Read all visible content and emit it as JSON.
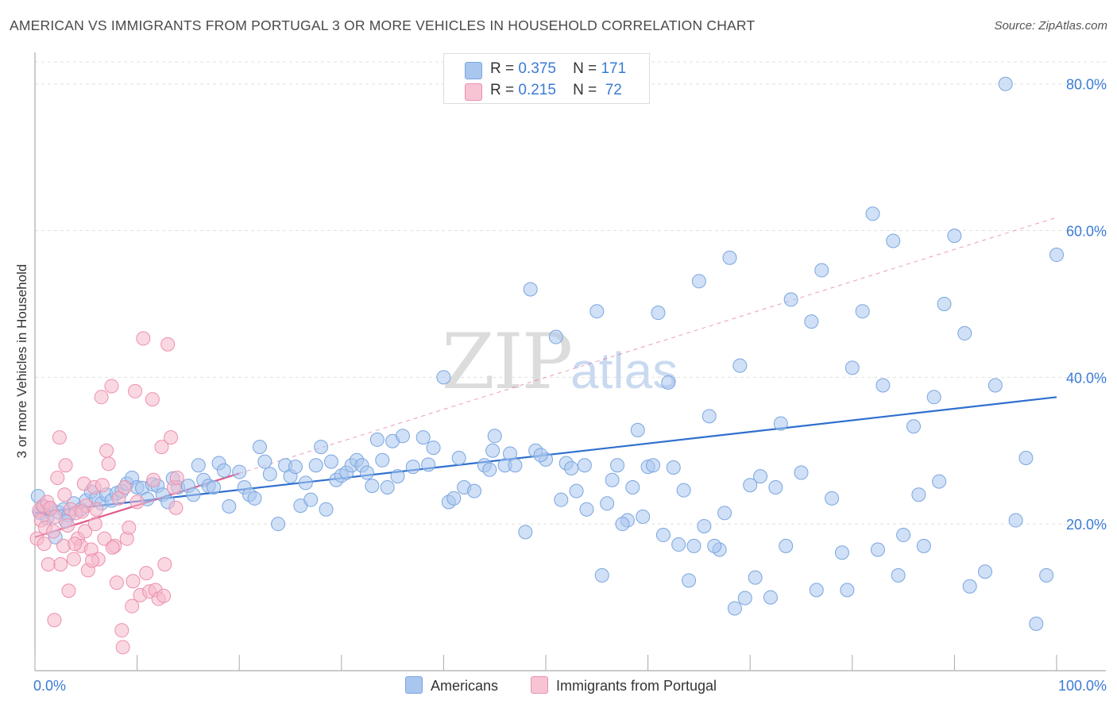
{
  "title": "AMERICAN VS IMMIGRANTS FROM PORTUGAL 3 OR MORE VEHICLES IN HOUSEHOLD CORRELATION CHART",
  "source": "Source: ZipAtlas.com",
  "watermark": {
    "zip": "ZIP",
    "atlas": "atlas"
  },
  "legend": {
    "r_label": "R =",
    "n_label": "N =",
    "rows": [
      {
        "r": "0.375",
        "n": "171"
      },
      {
        "r": "0.215",
        "n": " 72"
      }
    ]
  },
  "bottom_legend": [
    "Americans",
    "Immigrants from Portugal"
  ],
  "colors": {
    "blue_fill": "#a9c6ee",
    "blue_stroke": "#7aa6e0",
    "blue_line": "#2f6fcf",
    "pink_fill": "#f6b8cb",
    "pink_stroke": "#ec90ae",
    "pink_line": "#e05a8a",
    "axis_text": "#3a7bd5",
    "grid": "#e0e0e0"
  },
  "chart_data": {
    "type": "scatter",
    "title": "AMERICAN VS IMMIGRANTS FROM PORTUGAL 3 OR MORE VEHICLES IN HOUSEHOLD CORRELATION CHART",
    "xlabel": "",
    "ylabel": "3 or more Vehicles in Household",
    "xlim": [
      0,
      100
    ],
    "ylim": [
      0,
      83
    ],
    "x_tick_labels": [
      "0.0%",
      "100.0%"
    ],
    "y_ticks": [
      20,
      40,
      60,
      80
    ],
    "y_tick_labels": [
      "20.0%",
      "40.0%",
      "60.0%",
      "80.0%"
    ],
    "grid": true,
    "legend_position": "top-center",
    "series": [
      {
        "name": "Americans",
        "r": 0.375,
        "n": 171,
        "trend": {
          "x": [
            0,
            100
          ],
          "y": [
            21.5,
            37.3
          ]
        },
        "points": [
          [
            0.3,
            23.8
          ],
          [
            0.5,
            21.5
          ],
          [
            0.8,
            22.3
          ],
          [
            1.2,
            20.8
          ],
          [
            1.5,
            22.0
          ],
          [
            2.0,
            18.2
          ],
          [
            2.3,
            21.6
          ],
          [
            2.8,
            22.0
          ],
          [
            3.3,
            21.2
          ],
          [
            3.8,
            22.8
          ],
          [
            4.5,
            22.0
          ],
          [
            5.0,
            23.2
          ],
          [
            5.5,
            24.4
          ],
          [
            6.0,
            23.5
          ],
          [
            6.5,
            22.8
          ],
          [
            7.0,
            24.0
          ],
          [
            7.5,
            23.2
          ],
          [
            8.0,
            24.2
          ],
          [
            8.5,
            24.5
          ],
          [
            9.0,
            25.5
          ],
          [
            9.5,
            26.3
          ],
          [
            10.0,
            25.0
          ],
          [
            10.5,
            24.9
          ],
          [
            11.0,
            23.4
          ],
          [
            11.5,
            25.4
          ],
          [
            12.0,
            25.2
          ],
          [
            12.5,
            24.0
          ],
          [
            13.0,
            23.0
          ],
          [
            13.5,
            26.2
          ],
          [
            14.0,
            25.0
          ],
          [
            15.0,
            25.2
          ],
          [
            15.5,
            24.0
          ],
          [
            16.0,
            28.0
          ],
          [
            16.5,
            26.0
          ],
          [
            17.0,
            25.2
          ],
          [
            17.5,
            25.0
          ],
          [
            18.0,
            28.3
          ],
          [
            18.5,
            27.3
          ],
          [
            19.0,
            22.4
          ],
          [
            20.0,
            27.1
          ],
          [
            20.5,
            25.0
          ],
          [
            21.0,
            24.0
          ],
          [
            21.5,
            23.5
          ],
          [
            22.0,
            30.5
          ],
          [
            22.5,
            28.5
          ],
          [
            23.0,
            26.8
          ],
          [
            23.8,
            20.0
          ],
          [
            24.5,
            28.0
          ],
          [
            25.0,
            26.5
          ],
          [
            25.5,
            27.8
          ],
          [
            26.0,
            22.5
          ],
          [
            26.5,
            25.6
          ],
          [
            27.0,
            23.3
          ],
          [
            27.5,
            28.0
          ],
          [
            28.0,
            30.5
          ],
          [
            28.5,
            22.0
          ],
          [
            29.0,
            28.5
          ],
          [
            29.5,
            26.0
          ],
          [
            30.0,
            26.6
          ],
          [
            30.5,
            27.0
          ],
          [
            31.0,
            28.0
          ],
          [
            31.5,
            28.7
          ],
          [
            32.0,
            28.0
          ],
          [
            32.5,
            27.0
          ],
          [
            33.0,
            25.2
          ],
          [
            33.5,
            31.5
          ],
          [
            34.0,
            28.7
          ],
          [
            34.5,
            25.0
          ],
          [
            35.0,
            31.3
          ],
          [
            35.5,
            26.5
          ],
          [
            36.0,
            32.0
          ],
          [
            37.0,
            27.8
          ],
          [
            38.0,
            31.8
          ],
          [
            38.5,
            28.1
          ],
          [
            39.0,
            30.4
          ],
          [
            40.0,
            40.0
          ],
          [
            40.5,
            23.0
          ],
          [
            41.0,
            23.5
          ],
          [
            41.5,
            29.0
          ],
          [
            42.0,
            25.0
          ],
          [
            43.0,
            24.5
          ],
          [
            44.0,
            28.0
          ],
          [
            44.5,
            27.4
          ],
          [
            45.0,
            32.0
          ],
          [
            46.0,
            28.0
          ],
          [
            47.0,
            28.0
          ],
          [
            48.0,
            18.9
          ],
          [
            48.5,
            52.0
          ],
          [
            49.0,
            30.0
          ],
          [
            50.0,
            28.8
          ],
          [
            51.0,
            45.5
          ],
          [
            52.0,
            28.3
          ],
          [
            53.0,
            24.5
          ],
          [
            54.0,
            22.0
          ],
          [
            55.0,
            49.0
          ],
          [
            56.0,
            22.8
          ],
          [
            57.0,
            28.0
          ],
          [
            58.0,
            20.5
          ],
          [
            59.0,
            32.8
          ],
          [
            60.0,
            27.8
          ],
          [
            61.0,
            48.8
          ],
          [
            62.0,
            39.3
          ],
          [
            63.0,
            17.2
          ],
          [
            64.0,
            12.3
          ],
          [
            65.0,
            53.1
          ],
          [
            66.0,
            34.7
          ],
          [
            67.0,
            16.5
          ],
          [
            68.0,
            56.3
          ],
          [
            69.0,
            41.6
          ],
          [
            70.0,
            25.3
          ],
          [
            71.0,
            26.5
          ],
          [
            72.0,
            10.0
          ],
          [
            73.0,
            33.7
          ],
          [
            74.0,
            50.6
          ],
          [
            75.0,
            27.0
          ],
          [
            76.0,
            47.6
          ],
          [
            77.0,
            54.6
          ],
          [
            78.0,
            23.5
          ],
          [
            79.0,
            16.1
          ],
          [
            80.0,
            41.3
          ],
          [
            81.0,
            49.0
          ],
          [
            82.0,
            62.3
          ],
          [
            83.0,
            38.9
          ],
          [
            84.0,
            58.6
          ],
          [
            85.0,
            18.5
          ],
          [
            86.0,
            33.3
          ],
          [
            87.0,
            17.0
          ],
          [
            88.0,
            37.3
          ],
          [
            89.0,
            50.0
          ],
          [
            90.0,
            59.3
          ],
          [
            91.0,
            46.0
          ],
          [
            93.0,
            13.5
          ],
          [
            94.0,
            38.9
          ],
          [
            95.0,
            80.0
          ],
          [
            96.0,
            20.5
          ],
          [
            97.0,
            29.0
          ],
          [
            98.0,
            6.4
          ],
          [
            99.0,
            13.0
          ],
          [
            100.0,
            56.7
          ],
          [
            55.5,
            13.0
          ],
          [
            60.5,
            28.0
          ],
          [
            62.5,
            27.7
          ],
          [
            64.5,
            17.0
          ],
          [
            66.5,
            17.0
          ],
          [
            68.5,
            8.5
          ],
          [
            69.5,
            9.9
          ],
          [
            70.5,
            12.7
          ],
          [
            72.5,
            25.0
          ],
          [
            73.5,
            17.0
          ],
          [
            76.5,
            11.0
          ],
          [
            79.5,
            11.0
          ],
          [
            82.5,
            16.5
          ],
          [
            84.5,
            13.0
          ],
          [
            86.5,
            24.0
          ],
          [
            88.5,
            25.8
          ],
          [
            91.5,
            11.5
          ],
          [
            44.8,
            30.0
          ],
          [
            46.5,
            29.6
          ],
          [
            49.5,
            29.4
          ],
          [
            51.5,
            23.3
          ],
          [
            52.5,
            27.6
          ],
          [
            53.8,
            28.0
          ],
          [
            56.5,
            26.0
          ],
          [
            57.5,
            20.0
          ],
          [
            58.5,
            25.0
          ],
          [
            59.5,
            21.0
          ],
          [
            61.5,
            18.5
          ],
          [
            63.5,
            24.6
          ],
          [
            65.5,
            19.7
          ],
          [
            67.5,
            21.5
          ],
          [
            3.0,
            20.4
          ]
        ]
      },
      {
        "name": "Immigrants from Portugal",
        "r": 0.215,
        "n": 72,
        "trend": {
          "x": [
            0,
            20
          ],
          "y": [
            18.2,
            26.9
          ]
        },
        "trend_dashed": {
          "x": [
            20,
            100
          ],
          "y": [
            26.9,
            61.8
          ]
        },
        "points": [
          [
            0.2,
            18.0
          ],
          [
            0.4,
            21.8
          ],
          [
            0.6,
            20.5
          ],
          [
            0.8,
            22.5
          ],
          [
            1.0,
            19.5
          ],
          [
            1.2,
            23.0
          ],
          [
            1.5,
            22.2
          ],
          [
            1.8,
            19.0
          ],
          [
            2.0,
            21.0
          ],
          [
            2.2,
            26.3
          ],
          [
            2.5,
            14.5
          ],
          [
            2.8,
            17.0
          ],
          [
            3.0,
            28.0
          ],
          [
            3.2,
            19.8
          ],
          [
            3.5,
            22.0
          ],
          [
            3.8,
            15.2
          ],
          [
            4.0,
            21.5
          ],
          [
            4.2,
            18.0
          ],
          [
            4.5,
            17.0
          ],
          [
            4.8,
            25.5
          ],
          [
            5.0,
            22.5
          ],
          [
            5.2,
            13.7
          ],
          [
            5.5,
            16.5
          ],
          [
            5.8,
            25.0
          ],
          [
            6.0,
            22.0
          ],
          [
            6.2,
            15.2
          ],
          [
            6.5,
            37.3
          ],
          [
            6.8,
            18.0
          ],
          [
            7.0,
            30.0
          ],
          [
            7.2,
            28.2
          ],
          [
            7.5,
            38.8
          ],
          [
            7.8,
            17.0
          ],
          [
            8.0,
            12.0
          ],
          [
            8.2,
            23.5
          ],
          [
            8.5,
            5.5
          ],
          [
            8.8,
            25.0
          ],
          [
            9.0,
            18.0
          ],
          [
            9.2,
            19.5
          ],
          [
            9.5,
            8.8
          ],
          [
            9.8,
            38.1
          ],
          [
            10.0,
            23.0
          ],
          [
            10.3,
            10.3
          ],
          [
            10.6,
            45.3
          ],
          [
            10.9,
            13.3
          ],
          [
            11.2,
            10.8
          ],
          [
            11.5,
            37.0
          ],
          [
            11.8,
            11.0
          ],
          [
            12.1,
            9.8
          ],
          [
            12.4,
            30.5
          ],
          [
            12.7,
            14.5
          ],
          [
            13.0,
            44.5
          ],
          [
            13.3,
            31.8
          ],
          [
            13.6,
            25.0
          ],
          [
            13.9,
            26.3
          ],
          [
            1.3,
            14.5
          ],
          [
            2.4,
            31.8
          ],
          [
            3.3,
            10.9
          ],
          [
            4.6,
            21.7
          ],
          [
            5.6,
            15.0
          ],
          [
            6.6,
            25.3
          ],
          [
            7.6,
            16.8
          ],
          [
            8.6,
            3.2
          ],
          [
            9.6,
            12.2
          ],
          [
            11.6,
            26.0
          ],
          [
            12.6,
            10.2
          ],
          [
            13.8,
            22.2
          ],
          [
            0.9,
            17.3
          ],
          [
            1.9,
            6.9
          ],
          [
            2.9,
            24.0
          ],
          [
            3.9,
            17.3
          ],
          [
            4.9,
            19.0
          ],
          [
            5.9,
            20.0
          ]
        ]
      }
    ]
  }
}
